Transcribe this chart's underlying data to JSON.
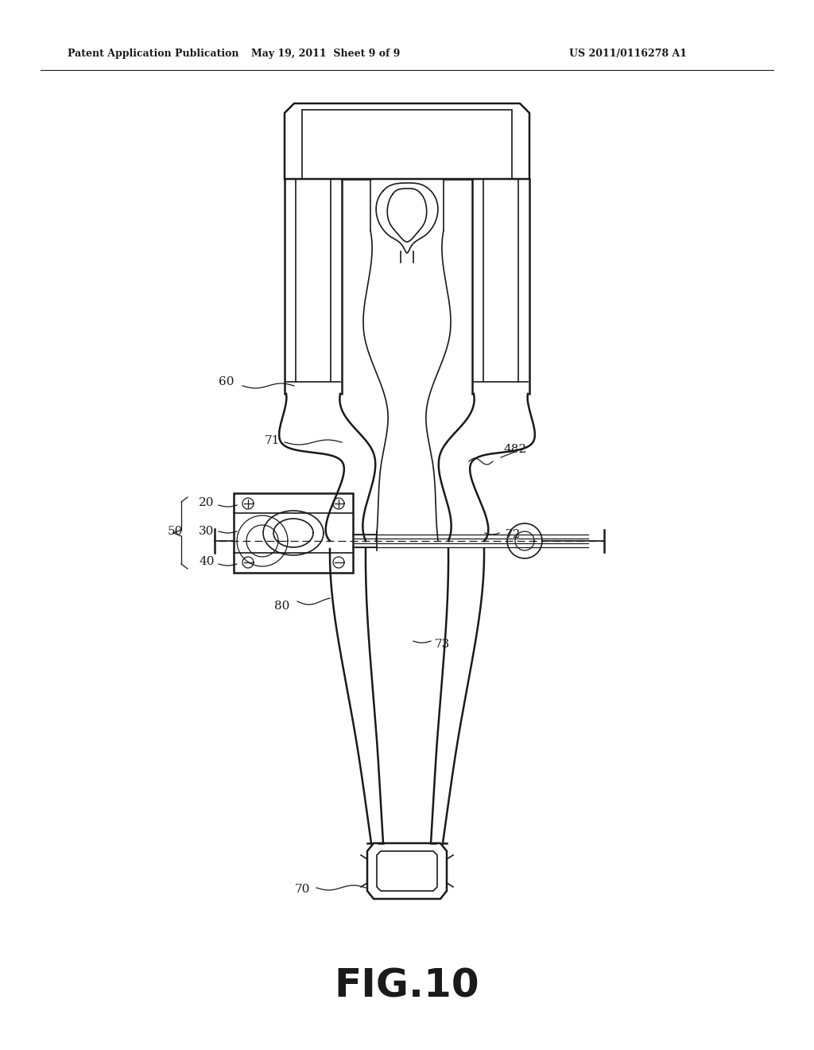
{
  "bg_color": "#ffffff",
  "line_color": "#1a1a1a",
  "header_text": "Patent Application Publication",
  "header_date": "May 19, 2011  Sheet 9 of 9",
  "header_patent": "US 2011/0116278 A1",
  "figure_label": "FIG.10",
  "figsize": [
    10.24,
    13.2
  ],
  "dpi": 100
}
